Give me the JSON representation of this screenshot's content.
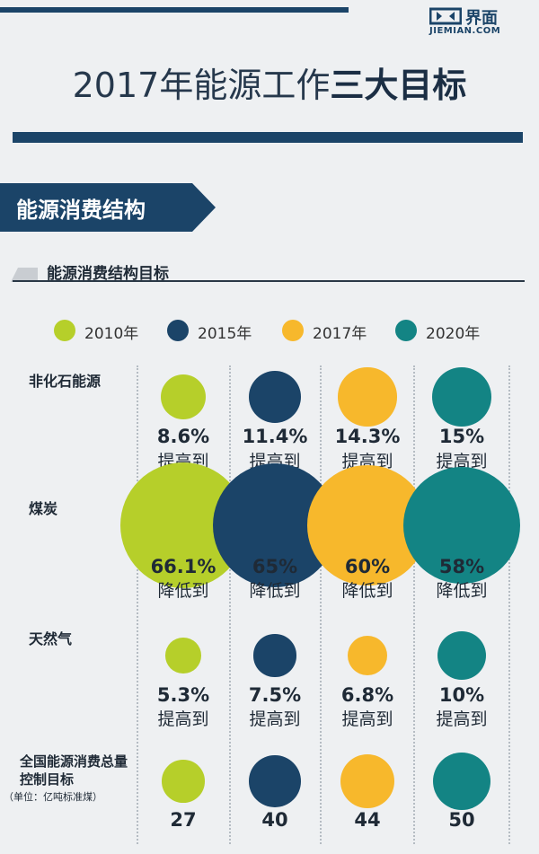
{
  "brand": {
    "cn": "界面",
    "en": "JIEMIAN.COM",
    "color": "#1b4468"
  },
  "title": {
    "prefix": "2017年能源工作",
    "emphasis": "三大目标"
  },
  "section": "能源消费结构",
  "subtitle": "能源消费结构目标",
  "colors": {
    "2010年": "#b6cf2a",
    "2015年": "#1b4468",
    "2017年": "#f7b82c",
    "2020年": "#138484"
  },
  "chart_data": {
    "type": "bubble-table",
    "title": "能源消费结构目标",
    "legend": [
      "2010年",
      "2015年",
      "2017年",
      "2020年"
    ],
    "rows": [
      {
        "label": "非化石能源",
        "action": "提高到",
        "values": [
          8.6,
          11.4,
          14.3,
          15
        ],
        "display": [
          "8.6%",
          "11.4%",
          "14.3%",
          "15%"
        ]
      },
      {
        "label": "煤炭",
        "action": "降低到",
        "values": [
          66.1,
          65,
          60,
          58
        ],
        "display": [
          "66.1%",
          "65%",
          "60%",
          "58%"
        ]
      },
      {
        "label": "天然气",
        "action": "提高到",
        "values": [
          5.3,
          7.5,
          6.8,
          10
        ],
        "display": [
          "5.3%",
          "7.5%",
          "6.8%",
          "10%"
        ]
      },
      {
        "label": "全国能源消费总量控制目标",
        "unit": "（单位：亿吨标准煤）",
        "action": "",
        "values": [
          27,
          40,
          44,
          50
        ],
        "display": [
          "27",
          "40",
          "44",
          "50"
        ]
      }
    ]
  }
}
